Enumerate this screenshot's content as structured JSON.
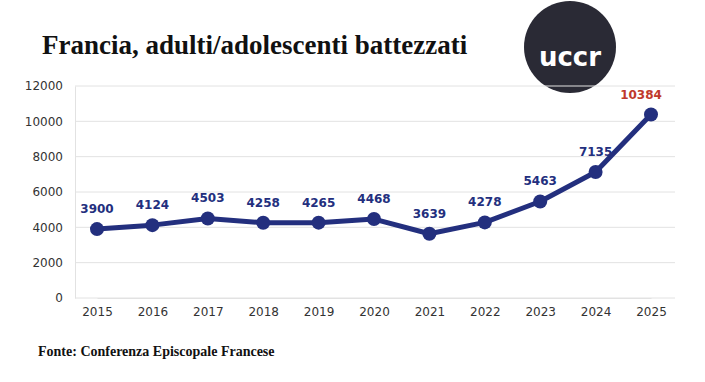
{
  "chart_data": {
    "type": "line",
    "title": "Francia, adulti/adolescenti battezzati",
    "source": "Fonte: Conferenza Episcopale Francese",
    "logo_text": "uccr",
    "categories": [
      "2015",
      "2016",
      "2017",
      "2018",
      "2019",
      "2020",
      "2021",
      "2022",
      "2023",
      "2024",
      "2025"
    ],
    "values": [
      3900,
      4124,
      4503,
      4258,
      4265,
      4468,
      3639,
      4278,
      5463,
      7135,
      10384
    ],
    "color": "#232f7e",
    "marker": "circle",
    "line_style": "solid",
    "ylim": [
      0,
      12000
    ],
    "yticks": [
      0,
      2000,
      4000,
      6000,
      8000,
      10000,
      12000
    ],
    "grid": true,
    "data_labels": true
  }
}
